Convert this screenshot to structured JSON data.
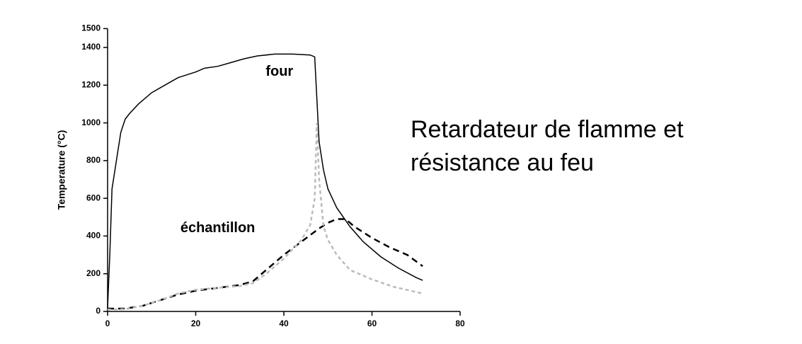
{
  "chart_data": {
    "type": "line",
    "ylabel": "Temperature (°C)",
    "heading": [
      "Retardateur de flamme et",
      "résistance au feu"
    ],
    "xlim": [
      0,
      80
    ],
    "xticks": [
      0,
      20,
      40,
      60,
      80
    ],
    "ylim": [
      0,
      1500
    ],
    "yticks": [
      0,
      200,
      400,
      600,
      800,
      1000,
      1200,
      1400,
      1500
    ],
    "series": [
      {
        "name": "four",
        "color": "#000000",
        "dash": "none",
        "x": [
          0,
          0.5,
          1,
          2,
          3,
          4,
          5,
          7,
          10,
          13,
          16,
          20,
          22,
          25,
          28,
          31,
          34,
          38,
          42,
          46,
          47,
          48,
          49,
          50,
          52,
          55,
          58,
          62,
          66,
          70,
          71.5
        ],
        "values": [
          20,
          300,
          650,
          800,
          950,
          1020,
          1050,
          1100,
          1160,
          1200,
          1240,
          1270,
          1290,
          1300,
          1320,
          1340,
          1355,
          1365,
          1365,
          1360,
          1350,
          900,
          750,
          650,
          550,
          450,
          370,
          290,
          230,
          180,
          165
        ],
        "label_at": [
          39,
          1270
        ]
      },
      {
        "name": "échantillon",
        "color": "#000000",
        "dash": "9 6",
        "x": [
          0,
          4,
          8,
          12,
          16,
          20,
          25,
          30,
          33,
          36,
          40,
          44,
          48,
          50,
          52,
          54,
          56,
          60,
          64,
          68,
          71.5
        ],
        "values": [
          15,
          15,
          30,
          60,
          90,
          110,
          125,
          140,
          160,
          220,
          300,
          370,
          440,
          470,
          490,
          490,
          450,
          390,
          340,
          300,
          240
        ],
        "label_at": [
          25,
          440
        ]
      },
      {
        "color": "#bbbbbb",
        "dash": "5 4",
        "x": [
          0,
          4,
          8,
          12,
          16,
          20,
          25,
          30,
          33,
          36,
          40,
          44,
          46,
          47,
          47.5,
          48,
          49,
          50,
          52,
          55,
          60,
          65,
          71.5
        ],
        "values": [
          10,
          12,
          30,
          60,
          95,
          115,
          125,
          135,
          150,
          200,
          280,
          380,
          460,
          600,
          1000,
          700,
          450,
          380,
          300,
          220,
          170,
          130,
          95
        ]
      }
    ]
  }
}
